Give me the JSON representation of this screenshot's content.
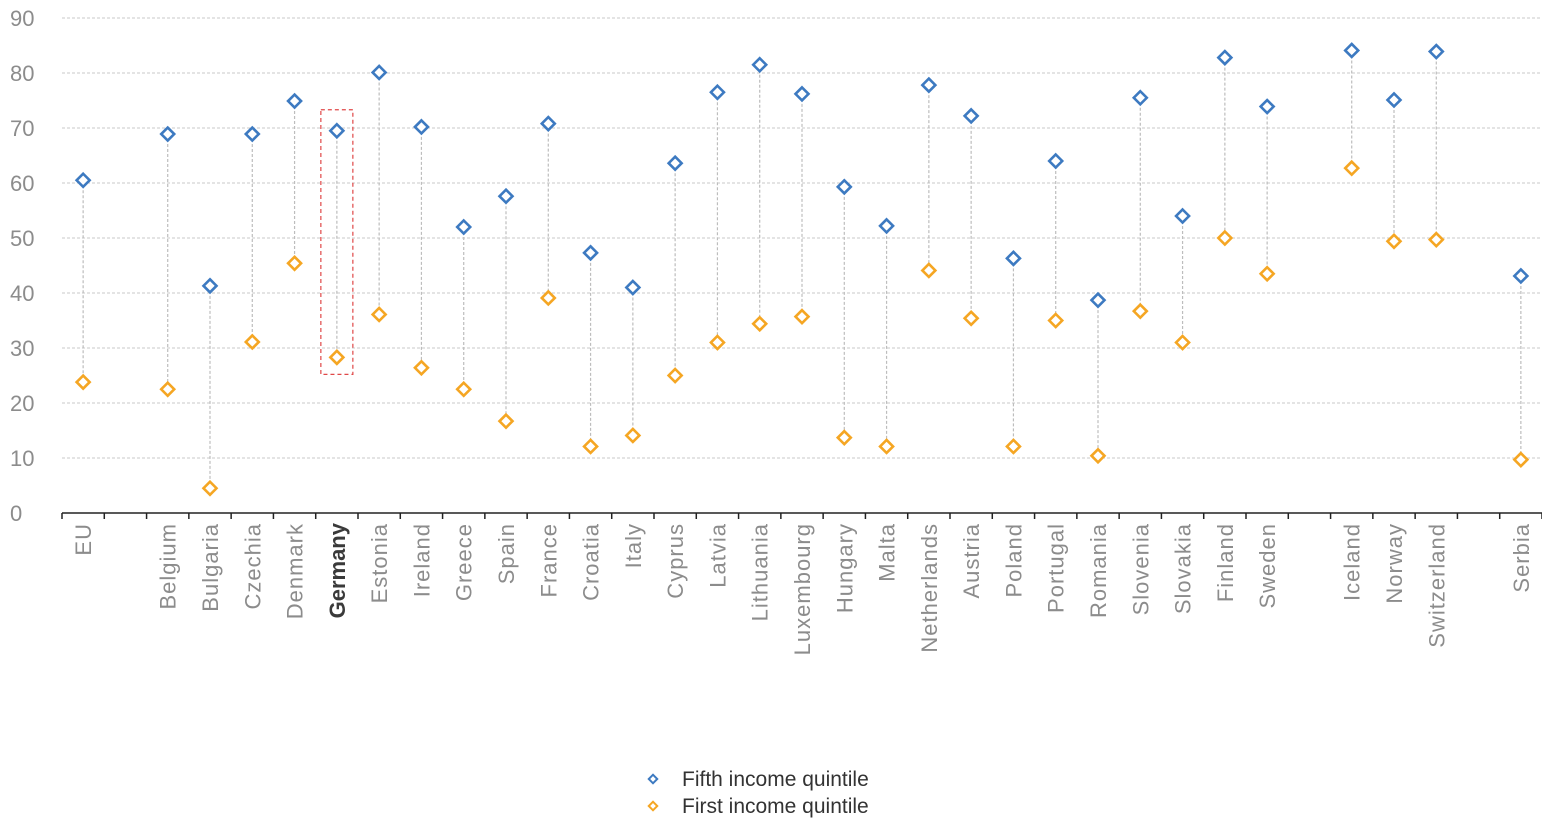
{
  "chart_data": {
    "type": "scatter",
    "title": "",
    "xlabel": "",
    "ylabel": "",
    "ylim": [
      0,
      90
    ],
    "yticks": [
      0,
      10,
      20,
      30,
      40,
      50,
      60,
      70,
      80,
      90
    ],
    "grid": true,
    "legend_position": "bottom-center",
    "highlight_category": "Germany",
    "categories": [
      "EU",
      "",
      "Belgium",
      "Bulgaria",
      "Czechia",
      "Denmark",
      "Germany",
      "Estonia",
      "Ireland",
      "Greece",
      "Spain",
      "France",
      "Croatia",
      "Italy",
      "Cyprus",
      "Latvia",
      "Lithuania",
      "Luxembourg",
      "Hungary",
      "Malta",
      "Netherlands",
      "Austria",
      "Poland",
      "Portugal",
      "Romania",
      "Slovenia",
      "Slovakia",
      "Finland",
      "Sweden",
      "",
      "Iceland",
      "Norway",
      "Switzerland",
      "",
      "Serbia"
    ],
    "series": [
      {
        "name": "Fifth income quintile",
        "color": "#3d7ac1",
        "values": [
          60.5,
          null,
          68.9,
          41.3,
          68.9,
          74.9,
          69.5,
          80.1,
          70.2,
          52.0,
          57.6,
          70.8,
          47.3,
          41.0,
          63.6,
          76.5,
          81.5,
          76.2,
          59.3,
          52.2,
          77.8,
          72.2,
          46.3,
          64.0,
          38.7,
          75.5,
          54.0,
          82.8,
          73.9,
          null,
          84.1,
          75.1,
          83.9,
          null,
          43.1
        ]
      },
      {
        "name": "First income quintile",
        "color": "#f5a623",
        "values": [
          23.8,
          null,
          22.5,
          4.5,
          31.1,
          45.4,
          28.3,
          36.1,
          26.4,
          22.5,
          16.7,
          39.1,
          12.1,
          14.1,
          25.0,
          31.0,
          34.4,
          35.7,
          13.7,
          12.1,
          44.1,
          35.4,
          12.1,
          35.0,
          10.4,
          36.7,
          31.0,
          50.0,
          43.5,
          null,
          62.7,
          49.4,
          49.7,
          null,
          9.7
        ]
      }
    ]
  },
  "legend": {
    "items": [
      {
        "label": "Fifth income quintile",
        "color": "#3d7ac1"
      },
      {
        "label": "First income quintile",
        "color": "#f5a623"
      }
    ]
  }
}
